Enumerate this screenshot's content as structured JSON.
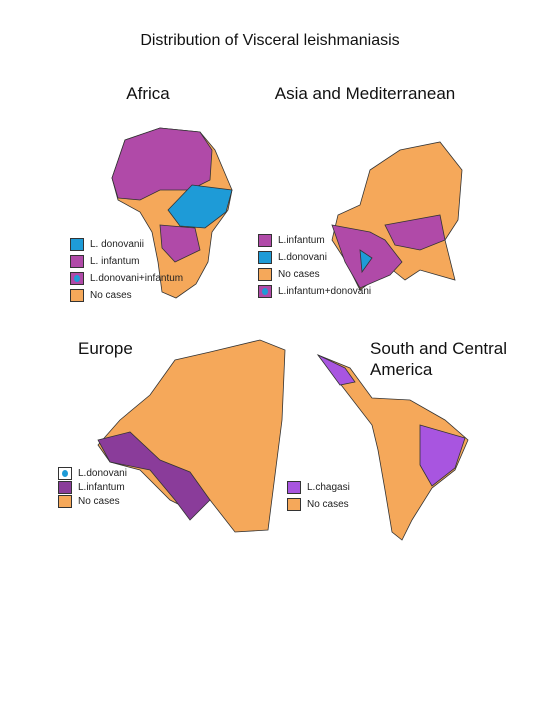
{
  "title": "Distribution of Visceral leishmaniasis",
  "panels": [
    {
      "title": "Africa",
      "legend": [
        {
          "label": "L. donovanii",
          "color": "#1e9bd7"
        },
        {
          "label": "L. infantum",
          "color": "#b04aa8"
        },
        {
          "label": "L.donovani+infantum",
          "color": "#b04aa8",
          "dot": "#1e9bd7"
        },
        {
          "label": "No cases",
          "color": "#f5a85a"
        }
      ]
    },
    {
      "title": "Asia and Mediterranean",
      "legend": [
        {
          "label": "L.infantum",
          "color": "#b04aa8"
        },
        {
          "label": "L.donovani",
          "color": "#1e9bd7"
        },
        {
          "label": "No cases",
          "color": "#f5a85a"
        },
        {
          "label": "L.infantum+donovani",
          "color": "#b04aa8",
          "dot": "#1e9bd7"
        }
      ]
    },
    {
      "title": "Europe",
      "legend": [
        {
          "label": "L.donovani",
          "color": "#ffffff",
          "dot": "#1e9bd7"
        },
        {
          "label": "L.infantum",
          "color": "#8a3c9a"
        },
        {
          "label": "No cases",
          "color": "#f5a85a"
        }
      ]
    },
    {
      "title": "South and Central America",
      "legend": [
        {
          "label": "L.chagasi",
          "color": "#a855e0"
        },
        {
          "label": "No cases",
          "color": "#f5a85a"
        }
      ]
    }
  ]
}
